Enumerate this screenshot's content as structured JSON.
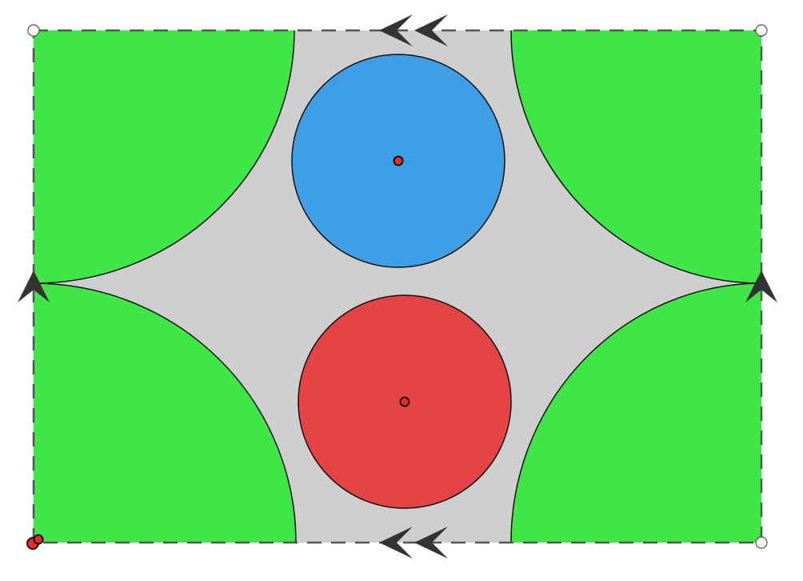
{
  "diagram": {
    "colors": {
      "background": "#ffffff",
      "table": "#cecece",
      "corner_region": "#3ee646",
      "blue_disk": "#3f9fe6",
      "red_disk": "#e64444",
      "point": "#ee2d22",
      "outline": "#111111",
      "boundary": "#555555",
      "marker": "#333333"
    },
    "boundary_style": "dashed",
    "edge_identification": {
      "top_bottom_markers": "double-arrow",
      "left_right_markers": "single-arrow"
    },
    "corner_regions": 4,
    "disks": [
      {
        "name": "blue-disk",
        "color_key": "blue_disk",
        "has_center_point": true
      },
      {
        "name": "red-disk",
        "color_key": "red_disk",
        "has_center_point": true
      }
    ],
    "base_points": {
      "filled": 1,
      "hollow": 3
    }
  }
}
